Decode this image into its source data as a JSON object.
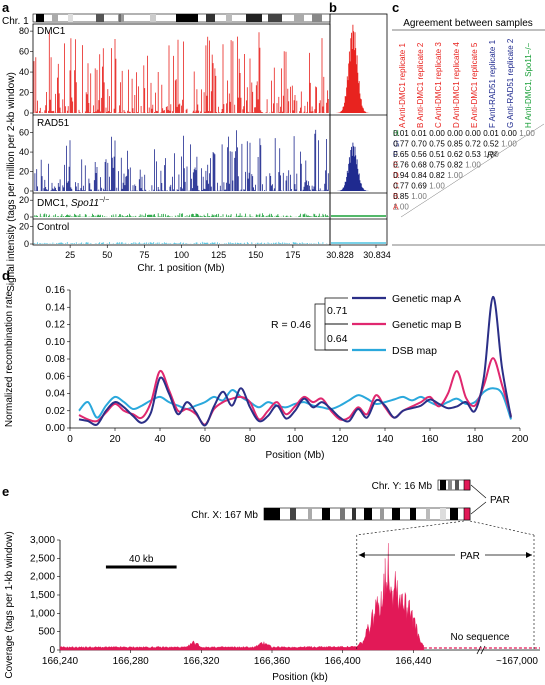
{
  "panels": {
    "a": {
      "label": "a",
      "chr_label": "Chr. 1",
      "ylabel": "Signal intensity (tags per million per 2-kb window)",
      "xlabel": "Chr. 1 position (Mb)",
      "xticks": [
        "25",
        "50",
        "75",
        "100",
        "125",
        "150",
        "175"
      ],
      "tracks": [
        {
          "name": "DMC1",
          "yticks": [
            "0",
            "20",
            "40",
            "60",
            "80"
          ],
          "color": "#e8231f"
        },
        {
          "name": "RAD51",
          "yticks": [
            "0",
            "20",
            "40",
            "60"
          ],
          "color": "#1f2a8f"
        },
        {
          "name": "DMC1, Spo11−/−",
          "name_main": "DMC1,",
          "name_italic": "Spo11",
          "name_sup": "−/−",
          "yticks": [
            "0",
            "20"
          ],
          "color": "#1aa039"
        },
        {
          "name": "Control",
          "yticks": [
            "0",
            "20"
          ],
          "color": "#4fc3e0"
        }
      ]
    },
    "b": {
      "label": "b",
      "xticks": [
        "30.828",
        "30.834"
      ]
    },
    "c": {
      "label": "c",
      "title": "Agreement between samples",
      "col_letters": [
        "A",
        "B",
        "C",
        "D",
        "E",
        "F",
        "G",
        "H"
      ],
      "col_labels": [
        "Anti-DMC1 replicate 1",
        "Anti-DMC1 replicate 2",
        "Anti-DMC1 replicate 3",
        "Anti-DMC1 replicate 4",
        "Anti-DMC1 replicate 5",
        "Anti-RAD51 replicate 1",
        "Anti-RAD51 replicate 2",
        "Anti-DMC1, Spo11−/−"
      ],
      "rows": [
        {
          "letter": "H",
          "values": [
            "0.01",
            "0.01",
            "0.00",
            "0.00",
            "0.00",
            "0.01",
            "0.00",
            "1.00"
          ]
        },
        {
          "letter": "G",
          "values": [
            "0.77",
            "0.70",
            "0.75",
            "0.85",
            "0.72",
            "0.52",
            "1.00"
          ]
        },
        {
          "letter": "F",
          "values": [
            "0.65",
            "0.56",
            "0.51",
            "0.62",
            "0.53",
            "1.00"
          ]
        },
        {
          "letter": "E",
          "values": [
            "0.76",
            "0.68",
            "0.75",
            "0.82",
            "1.00"
          ]
        },
        {
          "letter": "D",
          "values": [
            "0.94",
            "0.84",
            "0.82",
            "1.00"
          ]
        },
        {
          "letter": "C",
          "values": [
            "0.77",
            "0.69",
            "1.00"
          ]
        },
        {
          "letter": "B",
          "values": [
            "0.85",
            "1.00"
          ]
        },
        {
          "letter": "A",
          "values": [
            "1.00"
          ]
        }
      ],
      "r2_label": "R²",
      "colors": {
        "dmc1": "#e8231f",
        "rad51": "#1f2a8f",
        "spo11": "#1aa039"
      }
    },
    "d": {
      "label": "d"
    },
    "e": {
      "label": "e",
      "chrY_label": "Chr. Y: 16 Mb",
      "chrX_label": "Chr. X: 167 Mb",
      "par_label": "PAR",
      "scale_label": "40 kb",
      "par_inner_label": "PAR",
      "no_seq_label": "No sequence"
    }
  },
  "chart_data": [
    {
      "type": "line",
      "title": "",
      "xlabel": "Position (Mb)",
      "ylabel": "Normalized recombination rate",
      "xlim": [
        0,
        200
      ],
      "ylim": [
        0,
        0.16
      ],
      "xticks": [
        0,
        20,
        40,
        60,
        80,
        100,
        120,
        140,
        160,
        180,
        200
      ],
      "yticks": [
        0,
        0.02,
        0.04,
        0.06,
        0.08,
        0.1,
        0.12,
        0.14,
        0.16
      ],
      "ytick_labels": [
        "0.00",
        "0.02",
        "0.04",
        "0.06",
        "0.08",
        "0.10",
        "0.12",
        "0.14",
        "0.16"
      ],
      "legend": "top-right",
      "annotation": {
        "R": "R = 0.46",
        "r_ab": "0.71",
        "r_bd": "0.64"
      },
      "series": [
        {
          "name": "Genetic map A",
          "color": "#2b2f87",
          "x": [
            4,
            8,
            12,
            16,
            20,
            24,
            28,
            32,
            36,
            40,
            44,
            48,
            52,
            56,
            60,
            64,
            68,
            72,
            76,
            80,
            84,
            88,
            92,
            96,
            100,
            104,
            108,
            112,
            116,
            120,
            124,
            128,
            132,
            136,
            140,
            144,
            148,
            152,
            156,
            160,
            164,
            168,
            172,
            176,
            180,
            184,
            188,
            192,
            196
          ],
          "y": [
            0.01,
            0.008,
            0.004,
            0.02,
            0.03,
            0.024,
            0.014,
            0.006,
            0.018,
            0.058,
            0.04,
            0.016,
            0.03,
            0.018,
            0.003,
            0.025,
            0.042,
            0.026,
            0.046,
            0.024,
            0.008,
            0.014,
            0.026,
            0.011,
            0.02,
            0.034,
            0.024,
            0.03,
            0.022,
            0.012,
            0.008,
            0.022,
            0.012,
            0.032,
            0.026,
            0.012,
            0.02,
            0.023,
            0.026,
            0.033,
            0.028,
            0.023,
            0.025,
            0.03,
            0.02,
            0.06,
            0.152,
            0.07,
            0.012
          ]
        },
        {
          "name": "Genetic map B",
          "color": "#e0286f",
          "x": [
            4,
            8,
            12,
            16,
            20,
            24,
            28,
            32,
            36,
            40,
            44,
            48,
            52,
            56,
            60,
            64,
            68,
            72,
            76,
            80,
            84,
            88,
            92,
            96,
            100,
            104,
            108,
            112,
            116,
            120,
            124,
            128,
            132,
            136,
            140,
            144,
            148,
            152,
            156,
            160,
            164,
            168,
            172,
            176,
            180,
            184,
            188,
            192,
            196
          ],
          "y": [
            0.015,
            0.01,
            0.008,
            0.018,
            0.028,
            0.02,
            0.016,
            0.012,
            0.03,
            0.066,
            0.044,
            0.02,
            0.022,
            0.016,
            0.004,
            0.022,
            0.03,
            0.034,
            0.036,
            0.03,
            0.01,
            0.02,
            0.03,
            0.016,
            0.025,
            0.036,
            0.03,
            0.034,
            0.02,
            0.01,
            0.012,
            0.024,
            0.016,
            0.038,
            0.024,
            0.012,
            0.02,
            0.025,
            0.03,
            0.036,
            0.025,
            0.04,
            0.066,
            0.035,
            0.026,
            0.05,
            0.081,
            0.05,
            0.014
          ]
        },
        {
          "name": "DSB map",
          "color": "#2aa8dc",
          "x": [
            4,
            8,
            12,
            16,
            20,
            24,
            28,
            32,
            36,
            40,
            44,
            48,
            52,
            56,
            60,
            64,
            68,
            72,
            76,
            80,
            84,
            88,
            92,
            96,
            100,
            104,
            108,
            112,
            116,
            120,
            124,
            128,
            132,
            136,
            140,
            144,
            148,
            152,
            156,
            160,
            164,
            168,
            172,
            176,
            180,
            184,
            188,
            192,
            196
          ],
          "y": [
            0.02,
            0.03,
            0.012,
            0.026,
            0.036,
            0.03,
            0.022,
            0.026,
            0.032,
            0.036,
            0.03,
            0.026,
            0.022,
            0.026,
            0.03,
            0.036,
            0.032,
            0.044,
            0.036,
            0.03,
            0.024,
            0.03,
            0.026,
            0.024,
            0.028,
            0.03,
            0.026,
            0.024,
            0.022,
            0.026,
            0.032,
            0.038,
            0.034,
            0.028,
            0.03,
            0.033,
            0.036,
            0.032,
            0.036,
            0.03,
            0.026,
            0.03,
            0.034,
            0.028,
            0.03,
            0.042,
            0.046,
            0.04,
            0.01
          ]
        }
      ]
    },
    {
      "type": "area",
      "title": "",
      "xlabel": "Position (kb)",
      "ylabel": "Coverage (tags per 1-kb window)",
      "ylim": [
        0,
        3000
      ],
      "yticks": [
        0,
        500,
        1000,
        1500,
        2000,
        2500,
        3000
      ],
      "ytick_labels": [
        "0",
        "500",
        "1,000",
        "1,500",
        "2,000",
        "2,500",
        "3,000"
      ],
      "xticks": [
        166240,
        166280,
        166320,
        166360,
        166400,
        166440
      ],
      "xtick_labels": [
        "166,240",
        "166,280",
        "166,320",
        "166,360",
        "166,400",
        "166,440"
      ],
      "x_end_label": "~167,000",
      "xlim": [
        166240,
        166480
      ],
      "color": "#e21957",
      "series": [
        {
          "name": "",
          "x": [
            166240,
            166260,
            166280,
            166300,
            166312,
            166316,
            166320,
            166330,
            166350,
            166356,
            166360,
            166370,
            166390,
            166408,
            166412,
            166416,
            166420,
            166422,
            166424,
            166426,
            166428,
            166430,
            166432,
            166434,
            166436,
            166438,
            166440,
            166442,
            166444,
            166446
          ],
          "y": [
            80,
            80,
            80,
            80,
            80,
            250,
            80,
            80,
            80,
            230,
            80,
            80,
            90,
            90,
            300,
            900,
            1400,
            1800,
            2200,
            2900,
            1900,
            2300,
            1600,
            1800,
            1300,
            1600,
            1000,
            600,
            250,
            90
          ]
        }
      ]
    }
  ]
}
